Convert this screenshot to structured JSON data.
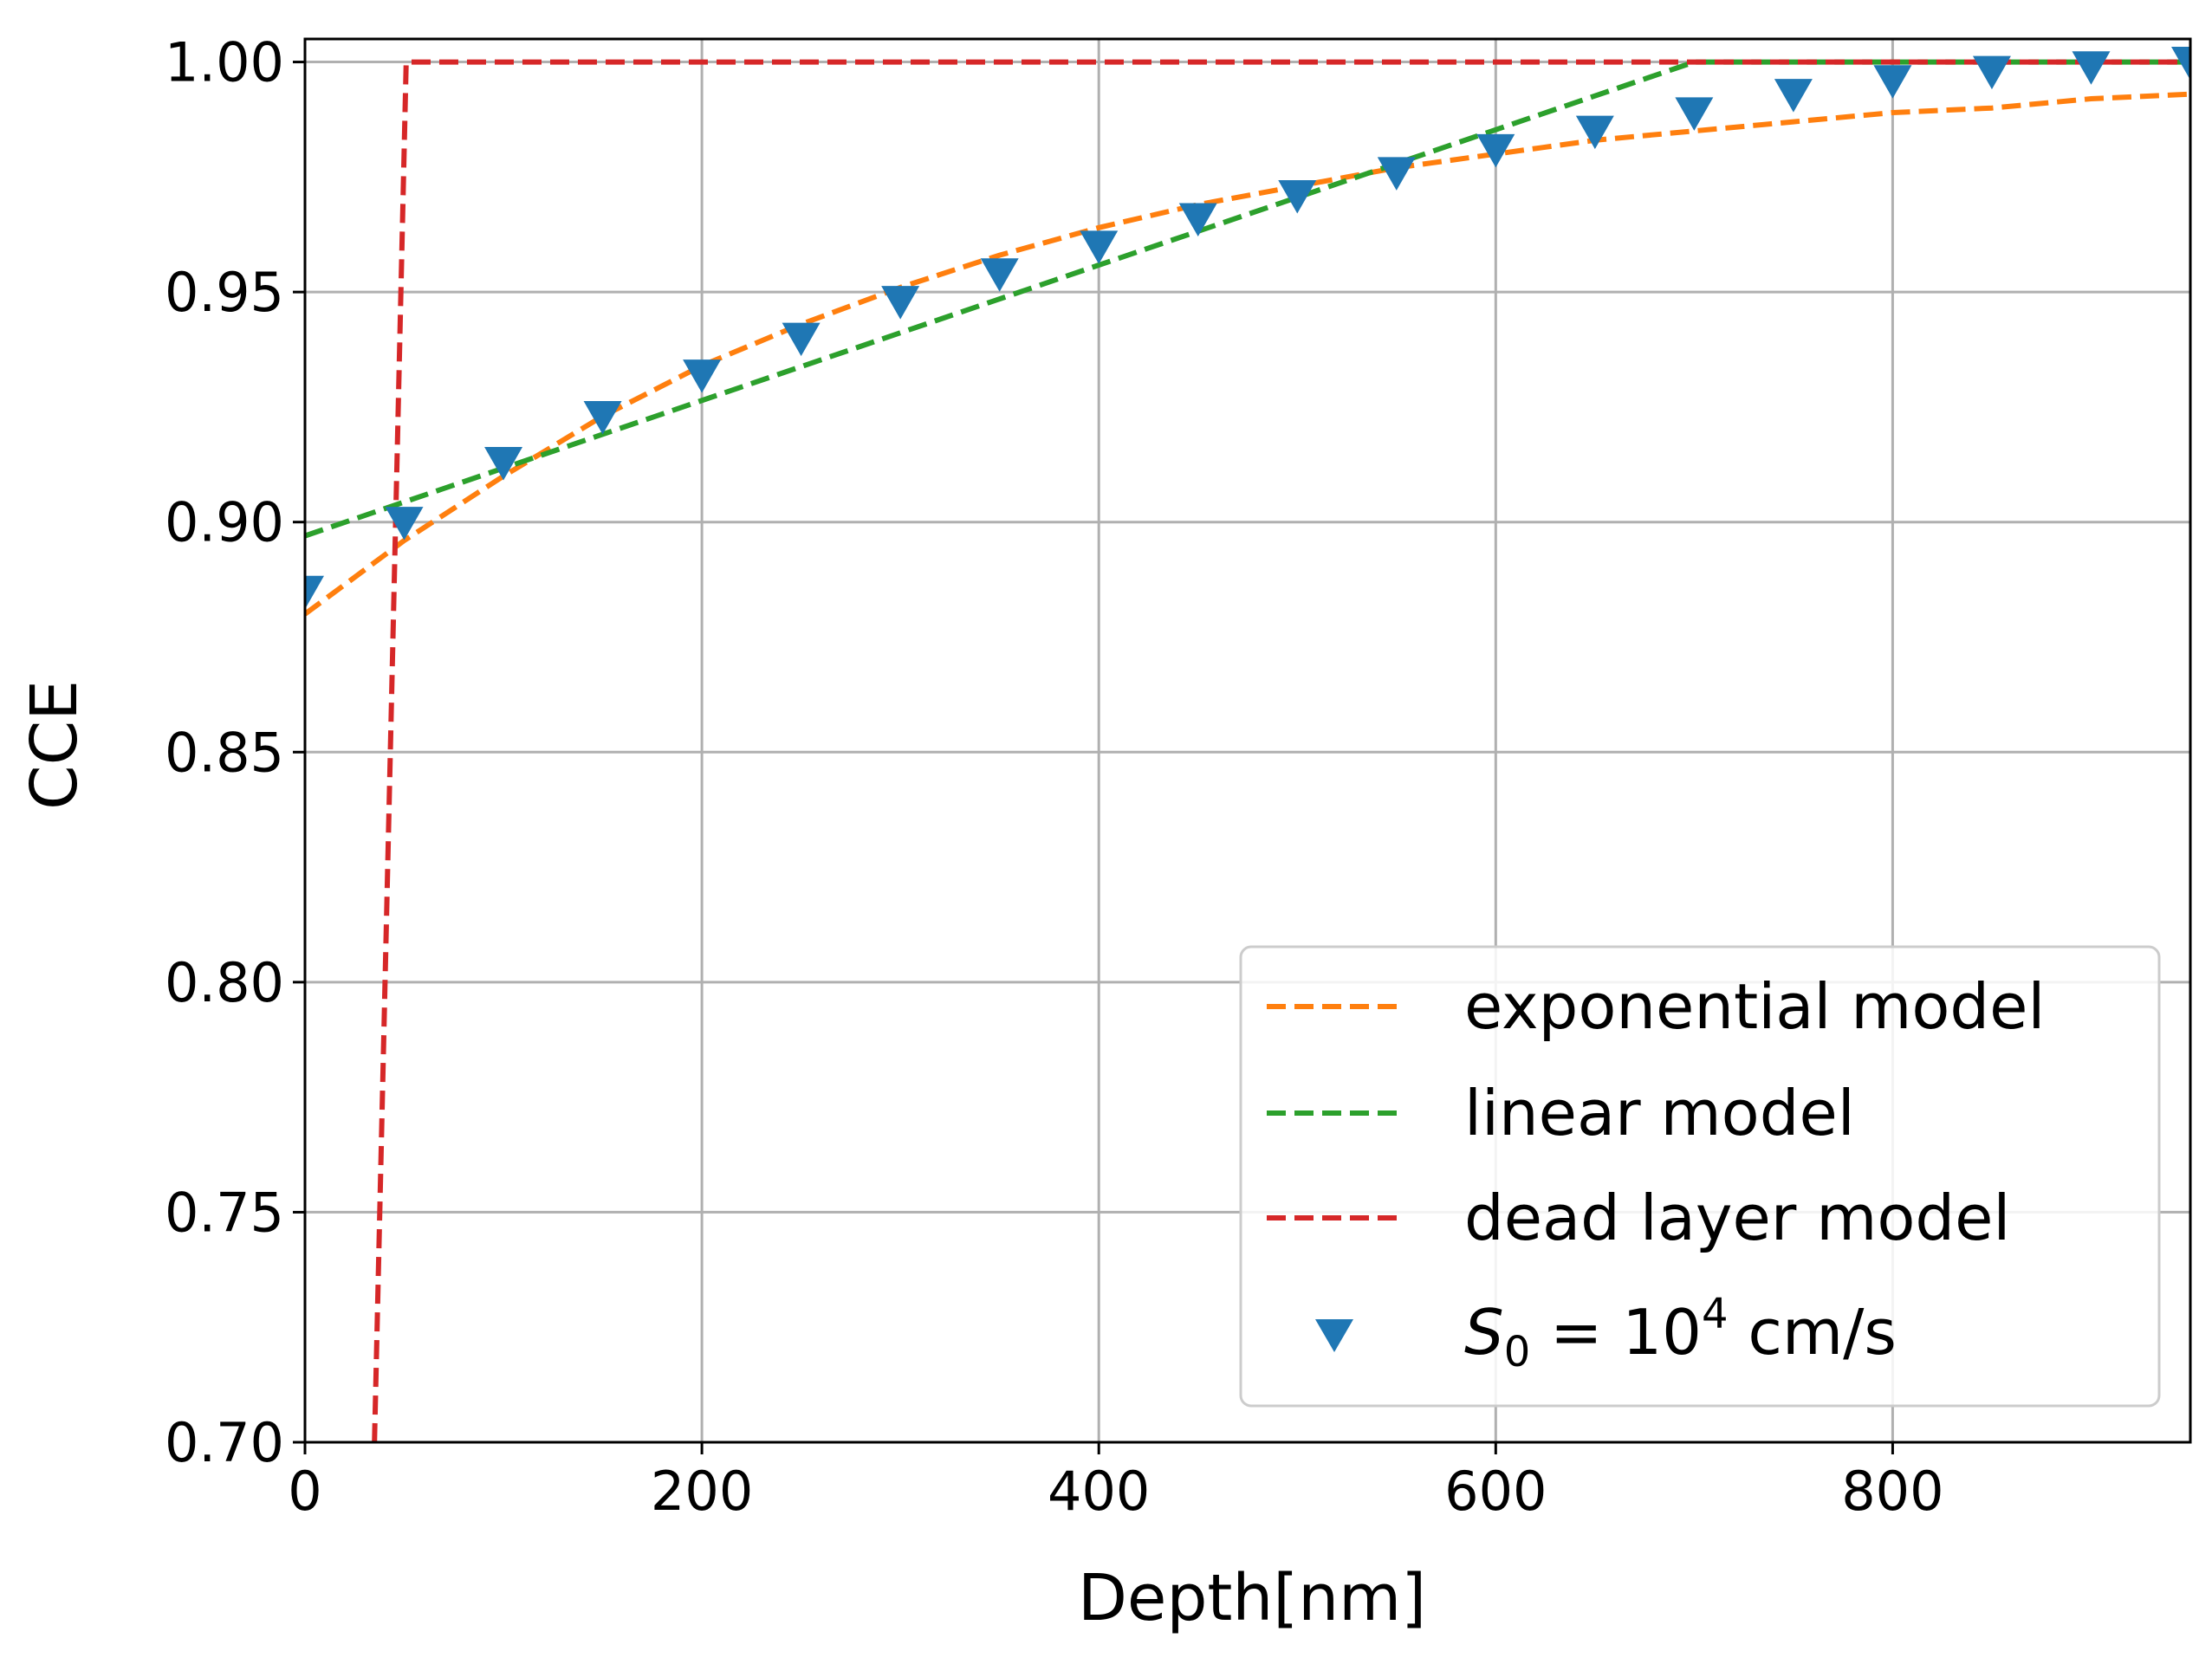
{
  "chart_data": {
    "type": "line",
    "title": "",
    "xlabel": "Depth[nm]",
    "ylabel": "CCE",
    "xlim": [
      0,
      950
    ],
    "ylim": [
      0.7,
      1.005
    ],
    "xticks": [
      0,
      200,
      400,
      600,
      800
    ],
    "xtick_labels": [
      "0",
      "200",
      "400",
      "600",
      "800"
    ],
    "yticks": [
      0.7,
      0.75,
      0.8,
      0.85,
      0.9,
      0.95,
      1.0
    ],
    "ytick_labels": [
      "0.70",
      "0.75",
      "0.80",
      "0.85",
      "0.90",
      "0.95",
      "1.00"
    ],
    "grid": true,
    "legend_position": "bottom-right",
    "series": [
      {
        "name": "exponential model",
        "style": "dashed",
        "color": "#ff7f0e",
        "x": [
          0,
          50,
          100,
          150,
          200,
          250,
          300,
          350,
          400,
          450,
          500,
          550,
          600,
          650,
          700,
          750,
          800,
          850,
          900,
          950
        ],
        "y": [
          0.88,
          0.896,
          0.91,
          0.923,
          0.934,
          0.943,
          0.951,
          0.958,
          0.964,
          0.969,
          0.973,
          0.977,
          0.98,
          0.983,
          0.985,
          0.987,
          0.989,
          0.99,
          0.992,
          0.993
        ]
      },
      {
        "name": "linear model",
        "style": "dashed",
        "color": "#2ca02c",
        "x": [
          0,
          700,
          950
        ],
        "y": [
          0.897,
          1.0,
          1.0
        ]
      },
      {
        "name": "dead layer model",
        "style": "dashed",
        "color": "#d62728",
        "x": [
          35,
          51,
          950
        ],
        "y": [
          0.7,
          1.0,
          1.0
        ]
      },
      {
        "name": "S0 = 10^4 cm/s",
        "style": "markers",
        "marker": "triangle-down",
        "color": "#1f77b4",
        "x": [
          0,
          50,
          100,
          150,
          200,
          250,
          300,
          350,
          400,
          450,
          500,
          550,
          600,
          650,
          700,
          750,
          800,
          850,
          900,
          950
        ],
        "y": [
          0.885,
          0.9,
          0.913,
          0.923,
          0.932,
          0.94,
          0.948,
          0.954,
          0.96,
          0.966,
          0.971,
          0.976,
          0.981,
          0.985,
          0.989,
          0.993,
          0.996,
          0.998,
          0.999,
          1.0
        ]
      }
    ],
    "legend_labels": {
      "exponential": "exponential model",
      "linear": "linear model",
      "dead": "dead layer model",
      "points_symbol": "S",
      "points_subscript": "0",
      "points_eq": " = 10",
      "points_sup": "4",
      "points_unit": " cm/s"
    }
  }
}
